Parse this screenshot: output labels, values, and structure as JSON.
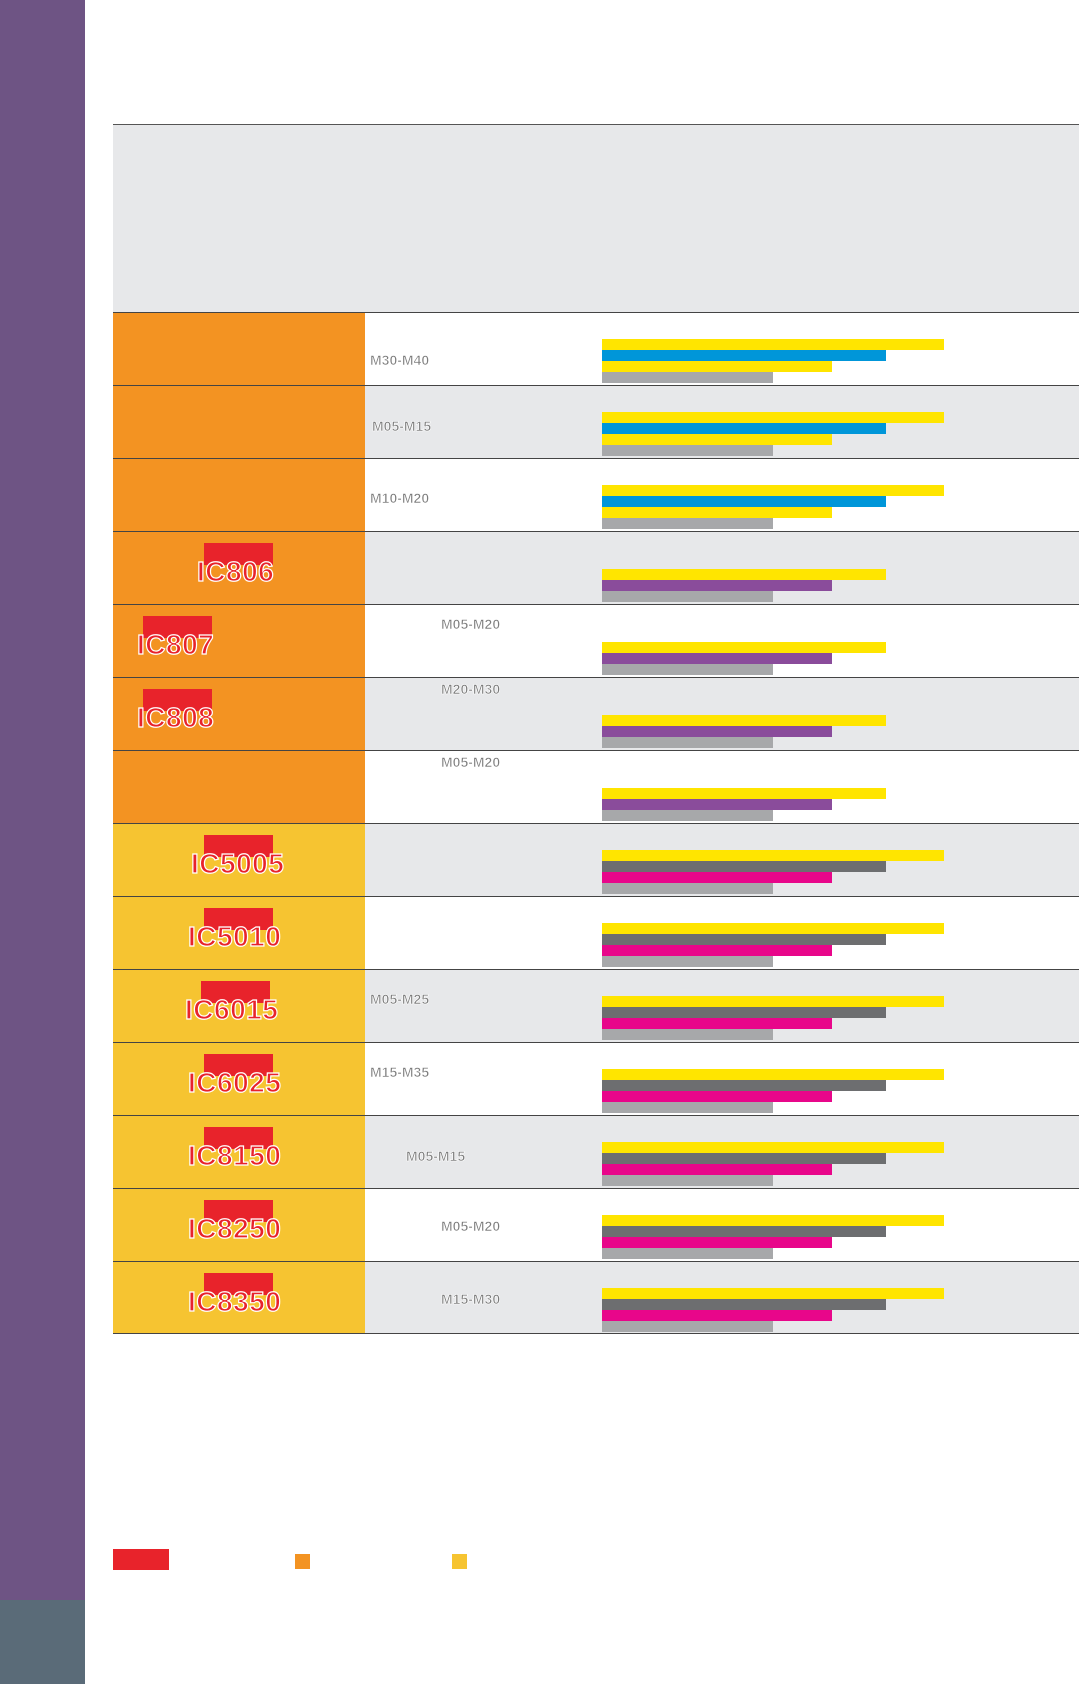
{
  "palette": {
    "cvd": "#f39322",
    "pvd": "#f6c431",
    "new_tag": "#e8232b",
    "yellow": "#ffe500",
    "blue": "#0096d9",
    "purple": "#8a4c9b",
    "dark_gray": "#6d6e70",
    "magenta": "#e8068a",
    "light_gray": "#a7a8aa"
  },
  "rows": [
    {
      "grade": "",
      "new": false,
      "range": "M30-M40",
      "coating": "cvd",
      "bars": [
        {
          "color": "yellow",
          "v": 0.76
        },
        {
          "color": "blue",
          "v": 0.63
        },
        {
          "color": "yellow",
          "v": 0.51
        },
        {
          "color": "light_gray",
          "v": 0.38
        }
      ]
    },
    {
      "grade": "",
      "new": false,
      "range": "M05-M15",
      "coating": "cvd",
      "bars": [
        {
          "color": "yellow",
          "v": 0.76
        },
        {
          "color": "blue",
          "v": 0.63
        },
        {
          "color": "yellow",
          "v": 0.51
        },
        {
          "color": "light_gray",
          "v": 0.38
        }
      ]
    },
    {
      "grade": "",
      "new": false,
      "range": "M10-M20",
      "coating": "cvd",
      "bars": [
        {
          "color": "yellow",
          "v": 0.76
        },
        {
          "color": "blue",
          "v": 0.63
        },
        {
          "color": "yellow",
          "v": 0.51
        },
        {
          "color": "light_gray",
          "v": 0.38
        }
      ]
    },
    {
      "grade": "IC806",
      "new": true,
      "range": "",
      "coating": "cvd",
      "bars": [
        {
          "color": "yellow",
          "v": 0.63
        },
        {
          "color": "purple",
          "v": 0.51
        },
        {
          "color": "light_gray",
          "v": 0.38
        }
      ]
    },
    {
      "grade": "IC807",
      "new": true,
      "range": "M05-M20",
      "coating": "cvd",
      "bars": [
        {
          "color": "yellow",
          "v": 0.63
        },
        {
          "color": "purple",
          "v": 0.51
        },
        {
          "color": "light_gray",
          "v": 0.38
        }
      ]
    },
    {
      "grade": "IC808",
      "new": true,
      "range": "M20-M30",
      "coating": "cvd",
      "bars": [
        {
          "color": "yellow",
          "v": 0.63
        },
        {
          "color": "purple",
          "v": 0.51
        },
        {
          "color": "light_gray",
          "v": 0.38
        }
      ]
    },
    {
      "grade": "",
      "new": false,
      "range": "M05-M20",
      "coating": "cvd",
      "bars": [
        {
          "color": "yellow",
          "v": 0.63
        },
        {
          "color": "purple",
          "v": 0.51
        },
        {
          "color": "light_gray",
          "v": 0.38
        }
      ]
    },
    {
      "grade": "IC5005",
      "new": true,
      "range": "",
      "coating": "pvd",
      "bars": [
        {
          "color": "yellow",
          "v": 0.76
        },
        {
          "color": "dark_gray",
          "v": 0.63
        },
        {
          "color": "magenta",
          "v": 0.51
        },
        {
          "color": "light_gray",
          "v": 0.38
        }
      ]
    },
    {
      "grade": "IC5010",
      "new": true,
      "range": "",
      "coating": "pvd",
      "bars": [
        {
          "color": "yellow",
          "v": 0.76
        },
        {
          "color": "dark_gray",
          "v": 0.63
        },
        {
          "color": "magenta",
          "v": 0.51
        },
        {
          "color": "light_gray",
          "v": 0.38
        }
      ]
    },
    {
      "grade": "IC6015",
      "new": true,
      "range": "M05-M25",
      "coating": "pvd",
      "bars": [
        {
          "color": "yellow",
          "v": 0.76
        },
        {
          "color": "dark_gray",
          "v": 0.63
        },
        {
          "color": "magenta",
          "v": 0.51
        },
        {
          "color": "light_gray",
          "v": 0.38
        }
      ]
    },
    {
      "grade": "IC6025",
      "new": true,
      "range": "M15-M35",
      "coating": "pvd",
      "bars": [
        {
          "color": "yellow",
          "v": 0.76
        },
        {
          "color": "dark_gray",
          "v": 0.63
        },
        {
          "color": "magenta",
          "v": 0.51
        },
        {
          "color": "light_gray",
          "v": 0.38
        }
      ]
    },
    {
      "grade": "IC8150",
      "new": true,
      "range": "M05-M15",
      "coating": "pvd",
      "bars": [
        {
          "color": "yellow",
          "v": 0.76
        },
        {
          "color": "dark_gray",
          "v": 0.63
        },
        {
          "color": "magenta",
          "v": 0.51
        },
        {
          "color": "light_gray",
          "v": 0.38
        }
      ]
    },
    {
      "grade": "IC8250",
      "new": true,
      "range": "M05-M20",
      "coating": "pvd",
      "bars": [
        {
          "color": "yellow",
          "v": 0.76
        },
        {
          "color": "dark_gray",
          "v": 0.63
        },
        {
          "color": "magenta",
          "v": 0.51
        },
        {
          "color": "light_gray",
          "v": 0.38
        }
      ]
    },
    {
      "grade": "IC8350",
      "new": true,
      "range": "M15-M30",
      "coating": "pvd",
      "bars": [
        {
          "color": "yellow",
          "v": 0.76
        },
        {
          "color": "dark_gray",
          "v": 0.63
        },
        {
          "color": "magenta",
          "v": 0.51
        },
        {
          "color": "light_gray",
          "v": 0.38
        }
      ]
    }
  ],
  "legend": [
    {
      "swatch": "new_tag",
      "label": ""
    },
    {
      "swatch": "cvd",
      "label": ""
    },
    {
      "swatch": "pvd",
      "label": ""
    }
  ]
}
